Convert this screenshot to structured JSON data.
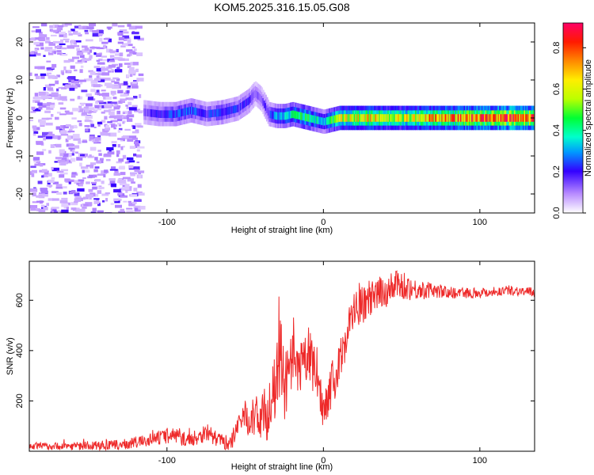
{
  "title": "KOM5.2025.316.15.05.G08",
  "chart_data": [
    {
      "type": "heatmap",
      "name": "spectrogram",
      "xlabel": "Height of straight line (km)",
      "ylabel": "Frequency (Hz)",
      "xlim": [
        -188,
        135
      ],
      "ylim": [
        -25,
        25
      ],
      "xticks": [
        -100,
        0,
        100
      ],
      "xtick_labels": [
        "-100",
        "0",
        "100"
      ],
      "yticks": [
        -20,
        -10,
        0,
        10,
        20
      ],
      "ytick_labels": [
        "-20",
        "-10",
        "0",
        "10",
        "20"
      ],
      "colorbar": {
        "label": "Normalized spectral amplitude",
        "range": [
          0,
          0.92
        ],
        "ticks": [
          0.0,
          0.2,
          0.4,
          0.6,
          0.8
        ],
        "tick_labels": [
          "0.0",
          "0.2",
          "0.4",
          "0.6",
          "0.8"
        ]
      },
      "ridge": {
        "x": [
          -115,
          -105,
          -95,
          -85,
          -75,
          -65,
          -55,
          -48,
          -44,
          -40,
          -35,
          -30,
          -25,
          -20,
          -10,
          0,
          10,
          20,
          30,
          40,
          50,
          60,
          70,
          80,
          90,
          100,
          110,
          120,
          135
        ],
        "y": [
          1.5,
          1,
          1,
          2,
          1,
          1.5,
          2.5,
          4.5,
          6.5,
          5,
          1,
          0.5,
          0.5,
          1,
          0,
          -1,
          0,
          0,
          0,
          0,
          0,
          0,
          0,
          0,
          0,
          0,
          0,
          0,
          0
        ],
        "amplitude": [
          0.15,
          0.2,
          0.25,
          0.25,
          0.2,
          0.25,
          0.2,
          0.2,
          0.15,
          0.15,
          0.2,
          0.3,
          0.35,
          0.4,
          0.45,
          0.3,
          0.6,
          0.6,
          0.65,
          0.6,
          0.6,
          0.65,
          0.7,
          0.7,
          0.75,
          0.8,
          0.8,
          0.85,
          0.8
        ]
      },
      "noise_region": {
        "x_range": [
          -188,
          -118
        ],
        "amplitude": 0.06
      }
    },
    {
      "type": "line",
      "name": "snr",
      "xlabel": "Height of straight line (km)",
      "ylabel": "SNR (v/v)",
      "xlim": [
        -188,
        135
      ],
      "ylim": [
        0,
        755
      ],
      "xticks": [
        -100,
        0,
        100
      ],
      "xtick_labels": [
        "-100",
        "0",
        "100"
      ],
      "yticks": [
        200,
        400,
        600
      ],
      "ytick_labels": [
        "200",
        "400",
        "600"
      ],
      "color": "#ee2a2a",
      "series": [
        {
          "name": "SNR",
          "x": [
            -188,
            -170,
            -150,
            -130,
            -115,
            -100,
            -95,
            -90,
            -85,
            -80,
            -75,
            -70,
            -65,
            -60,
            -55,
            -50,
            -45,
            -40,
            -35,
            -30,
            -28,
            -25,
            -20,
            -15,
            -10,
            -5,
            0,
            5,
            10,
            15,
            20,
            30,
            40,
            50,
            60,
            70,
            80,
            100,
            120,
            135
          ],
          "values": [
            20,
            20,
            22,
            25,
            40,
            60,
            65,
            50,
            45,
            55,
            80,
            55,
            40,
            30,
            80,
            150,
            130,
            140,
            160,
            260,
            400,
            250,
            330,
            300,
            400,
            300,
            170,
            260,
            330,
            480,
            560,
            600,
            640,
            660,
            640,
            640,
            630,
            630,
            640,
            630
          ],
          "amplitude": [
            15,
            15,
            18,
            20,
            25,
            30,
            35,
            30,
            25,
            30,
            40,
            30,
            30,
            30,
            50,
            80,
            80,
            90,
            120,
            140,
            180,
            130,
            150,
            120,
            110,
            100,
            80,
            90,
            90,
            90,
            80,
            70,
            70,
            60,
            40,
            30,
            25,
            20,
            20,
            20
          ]
        }
      ]
    }
  ]
}
